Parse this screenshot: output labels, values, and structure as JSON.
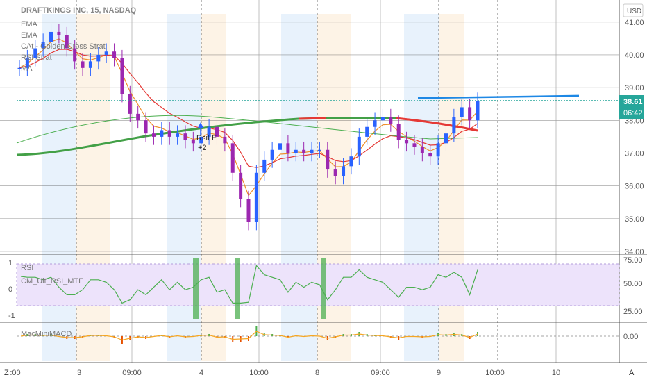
{
  "header": {
    "symbol_title": "DRAFTKINGS INC, 15, NASDAQ",
    "currency_button": "USD"
  },
  "legend": {
    "main": [
      "EMA",
      "EMA",
      "CAt - Golden Cross Strat",
      "RSI Strat",
      "MA"
    ],
    "rsi_pane": [
      "RSI",
      "CM_Ult_RSI_MTF"
    ],
    "bottom_pane": "MacMiniMACD"
  },
  "signal": {
    "label": "RsiLE",
    "sub": "+2"
  },
  "price_badge": {
    "price": "38.61",
    "countdown": "06:42",
    "color": "#26a69a"
  },
  "colors": {
    "up": "#2962ff",
    "down": "#9c27b0",
    "ema_fast": "#ef8f2a",
    "ema_slow": "#e53935",
    "ma_green": "#4caf50",
    "ma_long": "#43a047",
    "trendline": "#1e88e5",
    "rsi_line": "#4caf50",
    "rsi_band": "#ede3fb"
  },
  "chart_data": {
    "type": "line",
    "title": "DRAFTKINGS INC, 15, NASDAQ",
    "price_axis": {
      "ticks": [
        "41.00",
        "40.00",
        "39.00",
        "38.00",
        "37.00",
        "36.00",
        "35.00",
        "34.00"
      ],
      "range": [
        34,
        41.25
      ]
    },
    "rsi_axis": {
      "ticks": [
        "75.00",
        "50.00",
        "25.00"
      ],
      "left_ticks": [
        "1",
        "0",
        "-1"
      ]
    },
    "macd_axis": {
      "ticks": [
        "0.00"
      ]
    },
    "x_ticks": [
      ":00",
      "3",
      "09:00",
      "4",
      "10:00",
      "8",
      "09:00",
      "9",
      "10:00",
      "10"
    ],
    "close_series": [
      39.6,
      39.9,
      40.2,
      40.4,
      40.7,
      40.6,
      40.2,
      39.8,
      39.6,
      39.8,
      40.0,
      40.1,
      39.9,
      38.8,
      38.2,
      38.0,
      37.6,
      37.5,
      37.7,
      37.5,
      37.6,
      37.4,
      37.3,
      37.5,
      37.8,
      37.5,
      37.3,
      36.4,
      35.6,
      34.9,
      36.4,
      36.8,
      37.1,
      37.3,
      37.0,
      37.1,
      37.0,
      37.1,
      37.1,
      36.5,
      36.3,
      36.6,
      36.9,
      37.5,
      37.8,
      38.0,
      38.1,
      37.9,
      37.4,
      37.3,
      37.2,
      37.0,
      36.9,
      37.3,
      37.6,
      38.1,
      38.4,
      38.0,
      38.6
    ],
    "trendline": {
      "start": 38.68,
      "end": 38.75
    },
    "last_price": 38.61
  }
}
